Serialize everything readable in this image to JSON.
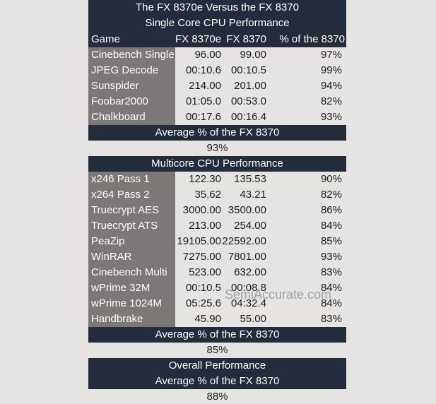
{
  "watermark": "SemiAccurate.com",
  "colors": {
    "page_background": "#e5e4e2",
    "header_bar_background": "#232c3b",
    "header_bar_text": "#ffffff",
    "label_column_background": "#7b7877",
    "label_column_text": "#ffffff",
    "value_text": "#1c1c1c",
    "watermark_text": "#a5a3a0"
  },
  "chart_data": [
    {
      "type": "table",
      "title": "The FX 8370e Versus the FX 8370",
      "subtitle": "Single Core CPU Performance",
      "columns": [
        "Game",
        "FX 8370e",
        "FX 8370",
        "% of the 8370"
      ],
      "rows": [
        [
          "Cinebench Single",
          "96.00",
          "99.00",
          "97%"
        ],
        [
          "JPEG Decode",
          "00:10.6",
          "00:10.5",
          "99%"
        ],
        [
          "Sunspider",
          "214.00",
          "201.00",
          "94%"
        ],
        [
          "Foobar2000",
          "01:05.0",
          "00:53.0",
          "82%"
        ],
        [
          "Chalkboard",
          "00:17.6",
          "00:16.4",
          "93%"
        ]
      ],
      "footer_label": "Average % of the FX 8370",
      "footer_value": "93%"
    },
    {
      "type": "table",
      "title": "Multicore CPU Performance",
      "columns": [
        "Game",
        "FX 8370e",
        "FX 8370",
        "% of the 8370"
      ],
      "rows": [
        [
          "x246 Pass 1",
          "122.30",
          "135.53",
          "90%"
        ],
        [
          "x264 Pass 2",
          "35.62",
          "43.21",
          "82%"
        ],
        [
          "Truecrypt AES",
          "3000.00",
          "3500.00",
          "86%"
        ],
        [
          "Truecrypt ATS",
          "213.00",
          "254.00",
          "84%"
        ],
        [
          "PeaZip",
          "19105.00",
          "22592.00",
          "85%"
        ],
        [
          "WinRAR",
          "7275.00",
          "7801.00",
          "93%"
        ],
        [
          "Cinebench Multi",
          "523.00",
          "632.00",
          "83%"
        ],
        [
          "wPrime 32M",
          "00:10.5",
          "00:08.8",
          "84%"
        ],
        [
          "wPrime 1024M",
          "05:25.6",
          "04:32.4",
          "84%"
        ],
        [
          "Handbrake",
          "45.90",
          "55.00",
          "83%"
        ]
      ],
      "footer_label": "Average % of the FX 8370",
      "footer_value": "85%"
    },
    {
      "type": "table",
      "title": "Overall Performance",
      "footer_label": "Average % of the FX 8370",
      "footer_value": "88%"
    }
  ]
}
